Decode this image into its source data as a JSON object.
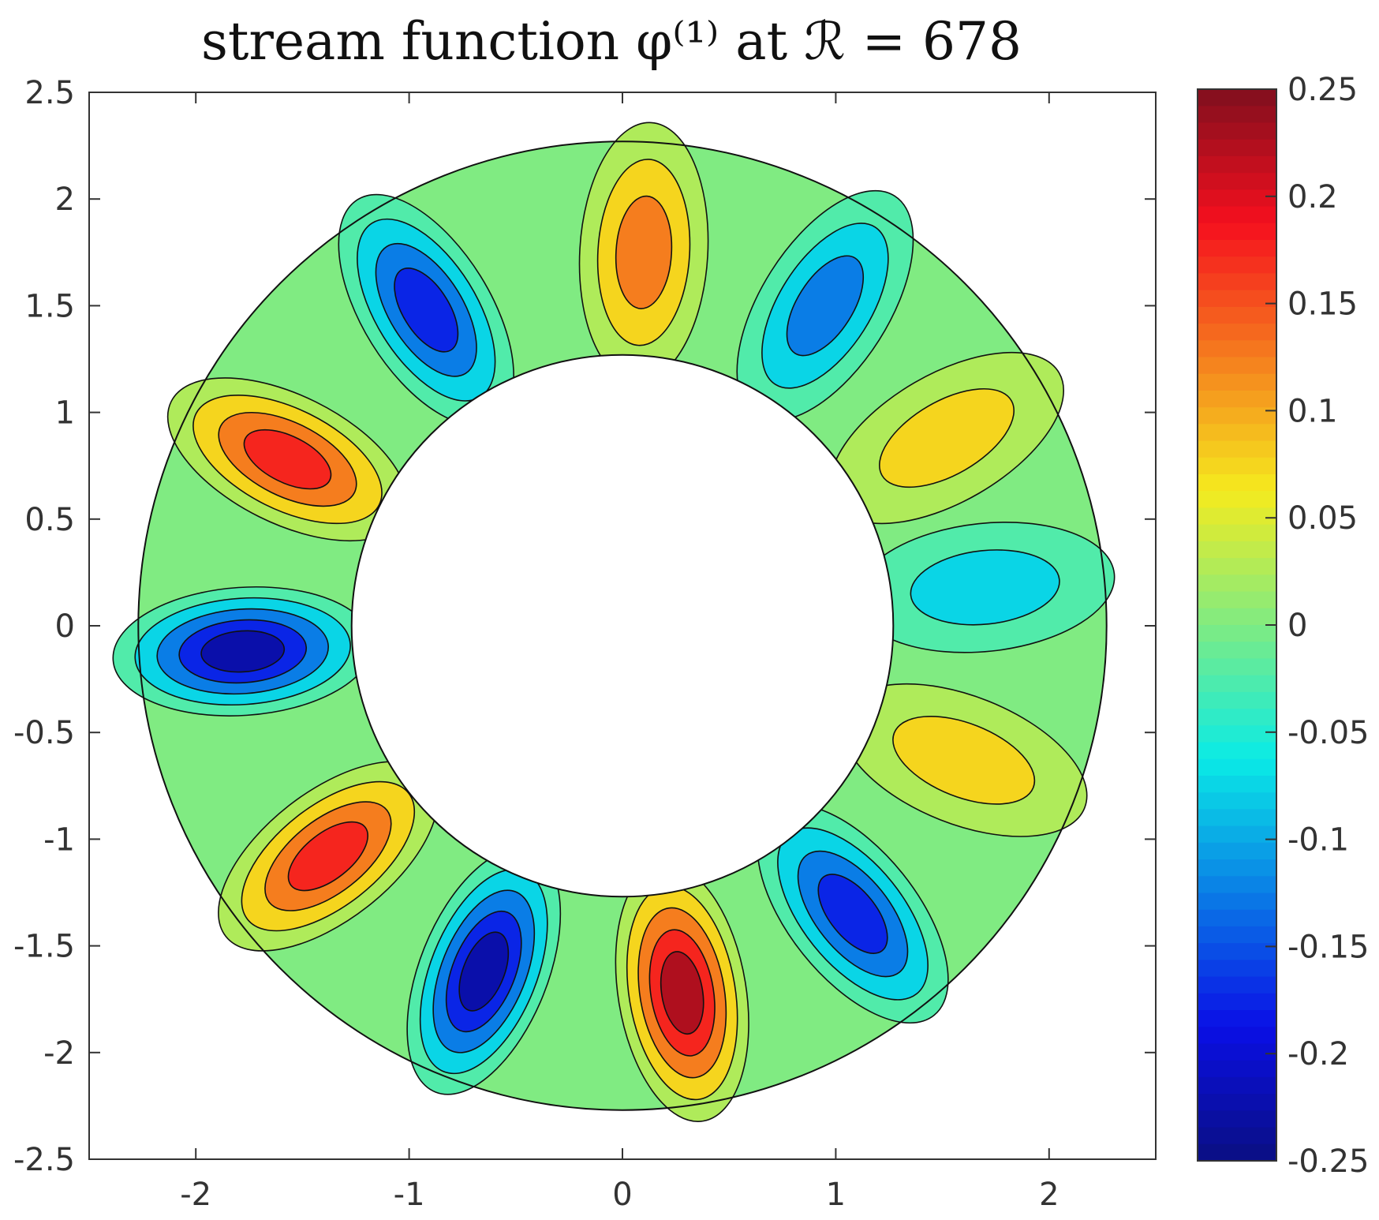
{
  "chart_data": {
    "type": "heatmap",
    "title": "stream function φ⁽¹⁾ at ℛ = 678",
    "xlabel": "",
    "ylabel": "",
    "xlim": [
      -2.5,
      2.5
    ],
    "ylim": [
      -2.5,
      2.5
    ],
    "xticks": [
      "-2",
      "-1",
      "0",
      "1",
      "2"
    ],
    "yticks": [
      "2.5",
      "2",
      "1.5",
      "1",
      "0.5",
      "0",
      "-0.5",
      "-1",
      "-1.5",
      "-2",
      "-2.5"
    ],
    "colorbar": {
      "range": [
        -0.25,
        0.25
      ],
      "ticks": [
        "0.25",
        "0.2",
        "0.15",
        "0.1",
        "0.05",
        "0",
        "-0.05",
        "-0.1",
        "-0.15",
        "-0.2",
        "-0.25"
      ],
      "colormap": "jet",
      "placement": "right"
    },
    "domain": {
      "shape": "annulus",
      "inner_radius": 1.27,
      "outer_radius": 2.27,
      "center": [
        0,
        0
      ]
    },
    "contour_levels": [
      -0.2,
      -0.15,
      -0.1,
      -0.05,
      0,
      0.05,
      0.1,
      0.15,
      0.2
    ],
    "vortices": [
      {
        "x": -0.92,
        "y": 1.48,
        "peak": -0.15
      },
      {
        "x": 0.1,
        "y": 1.75,
        "peak": 0.12
      },
      {
        "x": 0.95,
        "y": 1.5,
        "peak": -0.1
      },
      {
        "x": 1.52,
        "y": 0.88,
        "peak": 0.06
      },
      {
        "x": 1.7,
        "y": 0.18,
        "peak": -0.07
      },
      {
        "x": 1.6,
        "y": -0.63,
        "peak": 0.08
      },
      {
        "x": 1.08,
        "y": -1.35,
        "peak": -0.15
      },
      {
        "x": 0.28,
        "y": -1.72,
        "peak": 0.2
      },
      {
        "x": -0.65,
        "y": -1.62,
        "peak": -0.22
      },
      {
        "x": -1.38,
        "y": -1.08,
        "peak": 0.19
      },
      {
        "x": -1.78,
        "y": -0.12,
        "peak": -0.22
      },
      {
        "x": -1.57,
        "y": 0.78,
        "peak": 0.15
      }
    ]
  }
}
